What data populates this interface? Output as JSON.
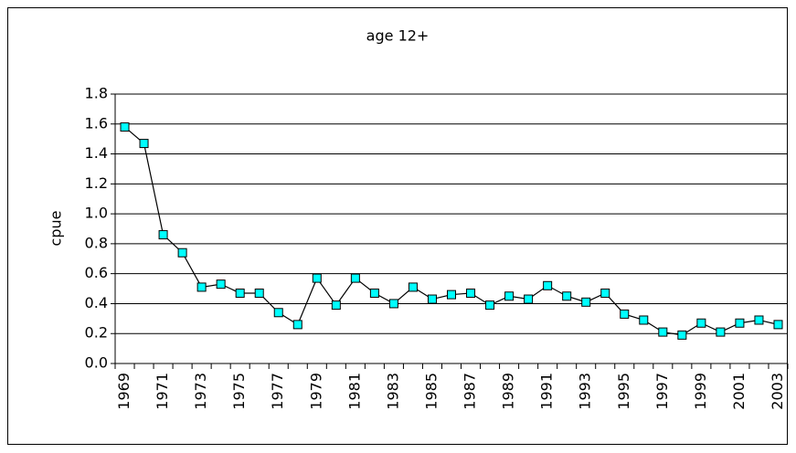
{
  "chart_data": {
    "type": "line",
    "title": "age 12+",
    "y_label": "cpue",
    "categories": [
      "1969",
      null,
      "1971",
      null,
      "1973",
      null,
      "1975",
      null,
      "1977",
      null,
      "1979",
      null,
      "1981",
      null,
      "1983",
      null,
      "1985",
      null,
      "1987",
      null,
      "1989",
      null,
      "1991",
      null,
      "1993",
      null,
      "1995",
      null,
      "1997",
      null,
      "1999",
      null,
      "2001",
      null,
      "2003"
    ],
    "series": [
      {
        "name": "cpue",
        "color": "#00ffff",
        "values": [
          1.58,
          1.47,
          0.86,
          0.74,
          0.51,
          0.53,
          0.47,
          0.47,
          0.34,
          0.26,
          0.57,
          0.39,
          0.57,
          0.47,
          0.4,
          0.51,
          0.43,
          0.46,
          0.47,
          0.39,
          0.45,
          0.43,
          0.52,
          0.45,
          0.41,
          0.47,
          0.33,
          0.29,
          0.21,
          0.19,
          0.27,
          0.21,
          0.27,
          0.29,
          0.26
        ]
      }
    ],
    "ylim": [
      0,
      1.8
    ],
    "yticks": [
      {
        "value": 0,
        "label": "0.0"
      },
      0.2,
      0.4,
      0.6,
      0.8,
      {
        "value": 1,
        "label": "1.0"
      },
      1.2,
      1.4,
      1.6,
      1.8
    ],
    "grid": true
  }
}
